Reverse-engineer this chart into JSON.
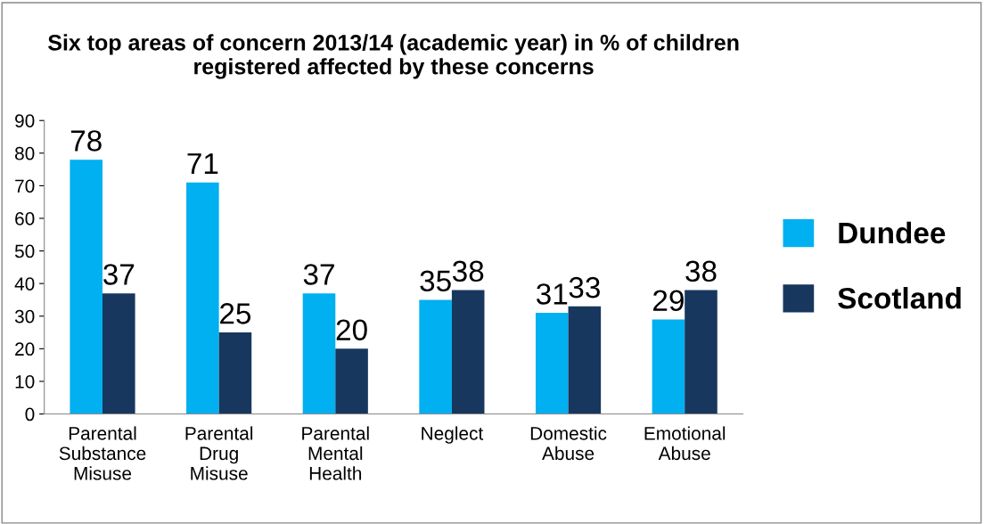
{
  "chart_data": {
    "type": "bar",
    "title": "Six top areas of concern 2013/14 (academic year) in % of children registered affected by these concerns",
    "categories": [
      "Parental\nSubstance\nMisuse",
      "Parental\nDrug\nMisuse",
      "Parental\nMental\nHealth",
      "Neglect",
      "Domestic\nAbuse",
      "Emotional\nAbuse"
    ],
    "series": [
      {
        "name": "Dundee",
        "color": "#00b0f0",
        "values": [
          78,
          71,
          37,
          35,
          31,
          29
        ]
      },
      {
        "name": "Scotland",
        "color": "#17375e",
        "values": [
          37,
          25,
          20,
          38,
          33,
          38
        ]
      }
    ],
    "ylim": [
      0,
      90
    ],
    "yticks": [
      0,
      10,
      20,
      30,
      40,
      50,
      60,
      70,
      80,
      90
    ],
    "data_labels": true,
    "grid": false,
    "legend": "right"
  }
}
